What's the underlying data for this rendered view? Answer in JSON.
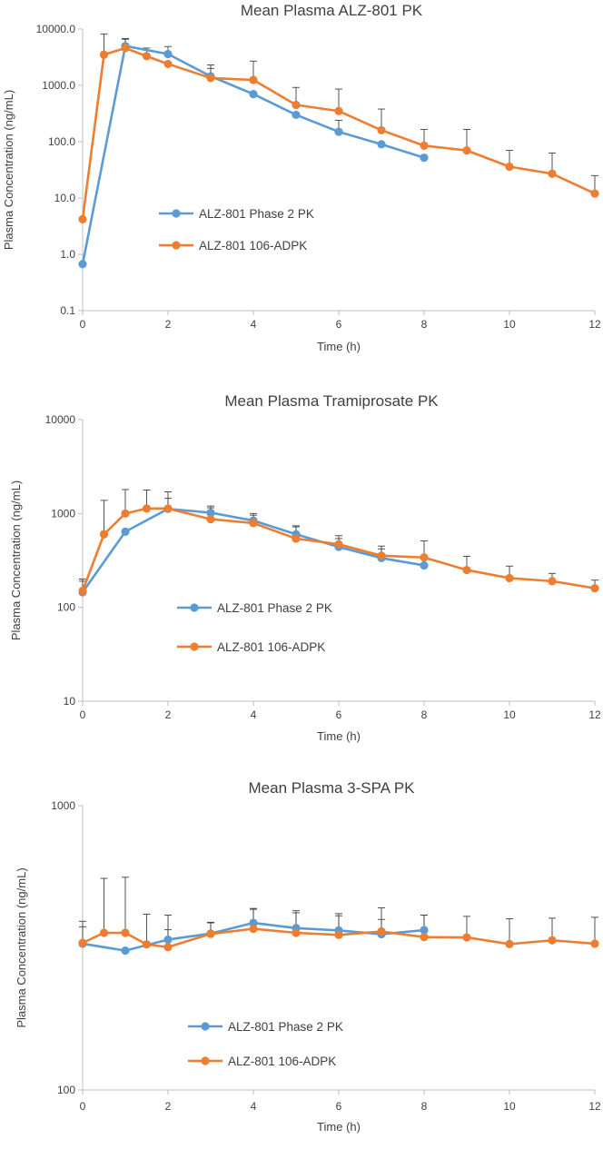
{
  "chart_data": [
    {
      "type": "line",
      "title": "Mean Plasma ALZ-801 PK",
      "xlabel": "Time (h)",
      "ylabel": "Plasma Concentration (ng/mL)",
      "yscale": "log",
      "xlim": [
        0,
        12
      ],
      "ylim": [
        0.1,
        10000
      ],
      "xticks": [
        0,
        2,
        4,
        6,
        8,
        10,
        12
      ],
      "yticks": [
        0.1,
        1,
        10,
        100,
        1000,
        10000
      ],
      "yticklabels": [
        "0.1",
        "1.0",
        "10.0",
        "100.0",
        "1000.0",
        "10000.0"
      ],
      "legend_position": "center-left",
      "series": [
        {
          "name": "ALZ-801 Phase 2 PK",
          "color": "#5B9BD5",
          "x": [
            0,
            1,
            2,
            3,
            4,
            5,
            6,
            7,
            8
          ],
          "y": [
            0.67,
            5000,
            3600,
            1450,
            700,
            300,
            150,
            90,
            52
          ],
          "err_upper": [
            null,
            6800,
            4900,
            2300,
            null,
            null,
            240,
            null,
            null
          ]
        },
        {
          "name": "ALZ-801 106-ADPK",
          "color": "#ED7D31",
          "x": [
            0,
            0.5,
            1,
            1.5,
            2,
            3,
            4,
            5,
            6,
            7,
            8,
            9,
            10,
            11,
            12
          ],
          "y": [
            4.2,
            3500,
            4600,
            3300,
            2400,
            1350,
            1250,
            450,
            350,
            160,
            85,
            70,
            36,
            27,
            12
          ],
          "err_upper": [
            null,
            8200,
            6600,
            4600,
            null,
            2000,
            2700,
            920,
            860,
            380,
            165,
            165,
            70,
            63,
            25
          ]
        }
      ]
    },
    {
      "type": "line",
      "title": "Mean Plasma Tramiprosate PK",
      "xlabel": "Time (h)",
      "ylabel": "Plasma Concentration (ng/mL)",
      "yscale": "log",
      "xlim": [
        0,
        12
      ],
      "ylim": [
        10,
        10000
      ],
      "xticks": [
        0,
        2,
        4,
        6,
        8,
        10,
        12
      ],
      "yticks": [
        10,
        100,
        1000,
        10000
      ],
      "yticklabels": [
        "10",
        "100",
        "1000",
        "10000"
      ],
      "legend_position": "center-left",
      "series": [
        {
          "name": "ALZ-801 Phase 2 PK",
          "color": "#5B9BD5",
          "x": [
            0,
            1,
            2,
            3,
            4,
            5,
            6,
            7,
            8
          ],
          "y": [
            145,
            640,
            1120,
            1020,
            840,
            600,
            440,
            335,
            280
          ],
          "err_upper": [
            190,
            null,
            1450,
            1200,
            1000,
            720,
            540,
            420,
            null
          ]
        },
        {
          "name": "ALZ-801 106-ADPK",
          "color": "#ED7D31",
          "x": [
            0,
            0.5,
            1,
            1.5,
            2,
            3,
            4,
            5,
            6,
            7,
            8,
            9,
            10,
            11,
            12
          ],
          "y": [
            150,
            600,
            1000,
            1130,
            1130,
            870,
            790,
            540,
            470,
            355,
            340,
            250,
            205,
            190,
            160
          ],
          "err_upper": [
            200,
            1380,
            1800,
            1780,
            1700,
            1150,
            960,
            740,
            580,
            450,
            510,
            350,
            275,
            230,
            195
          ]
        }
      ]
    },
    {
      "type": "line",
      "title": "Mean Plasma 3-SPA PK",
      "xlabel": "Time (h)",
      "ylabel": "Plasma Concentration (ng/mL)",
      "yscale": "log",
      "xlim": [
        0,
        12
      ],
      "ylim": [
        100,
        1000
      ],
      "xticks": [
        0,
        2,
        4,
        6,
        8,
        10,
        12
      ],
      "yticks": [
        100,
        1000
      ],
      "yticklabels": [
        "100",
        "1000"
      ],
      "legend_position": "bottom-left",
      "series": [
        {
          "name": "ALZ-801 Phase 2 PK",
          "color": "#5B9BD5",
          "x": [
            0,
            1,
            2,
            3,
            4,
            5,
            6,
            7,
            8
          ],
          "y": [
            327,
            309,
            338,
            355,
            387,
            371,
            364,
            353,
            365
          ],
          "err_upper": [
            392,
            null,
            366,
            389,
            435,
            420,
            410,
            398,
            412
          ]
        },
        {
          "name": "ALZ-801 106-ADPK",
          "color": "#ED7D31",
          "x": [
            0,
            0.5,
            1,
            1.5,
            2,
            3,
            4,
            5,
            6,
            7,
            8,
            9,
            10,
            11,
            12
          ],
          "y": [
            329,
            357,
            357,
            325,
            318,
            354,
            369,
            357,
            351,
            361,
            345,
            344,
            326,
            336,
            327
          ],
          "err_upper": [
            375,
            555,
            560,
            415,
            412,
            387,
            432,
            427,
            417,
            437,
            412,
            408,
            400,
            402,
            405
          ]
        }
      ]
    }
  ]
}
